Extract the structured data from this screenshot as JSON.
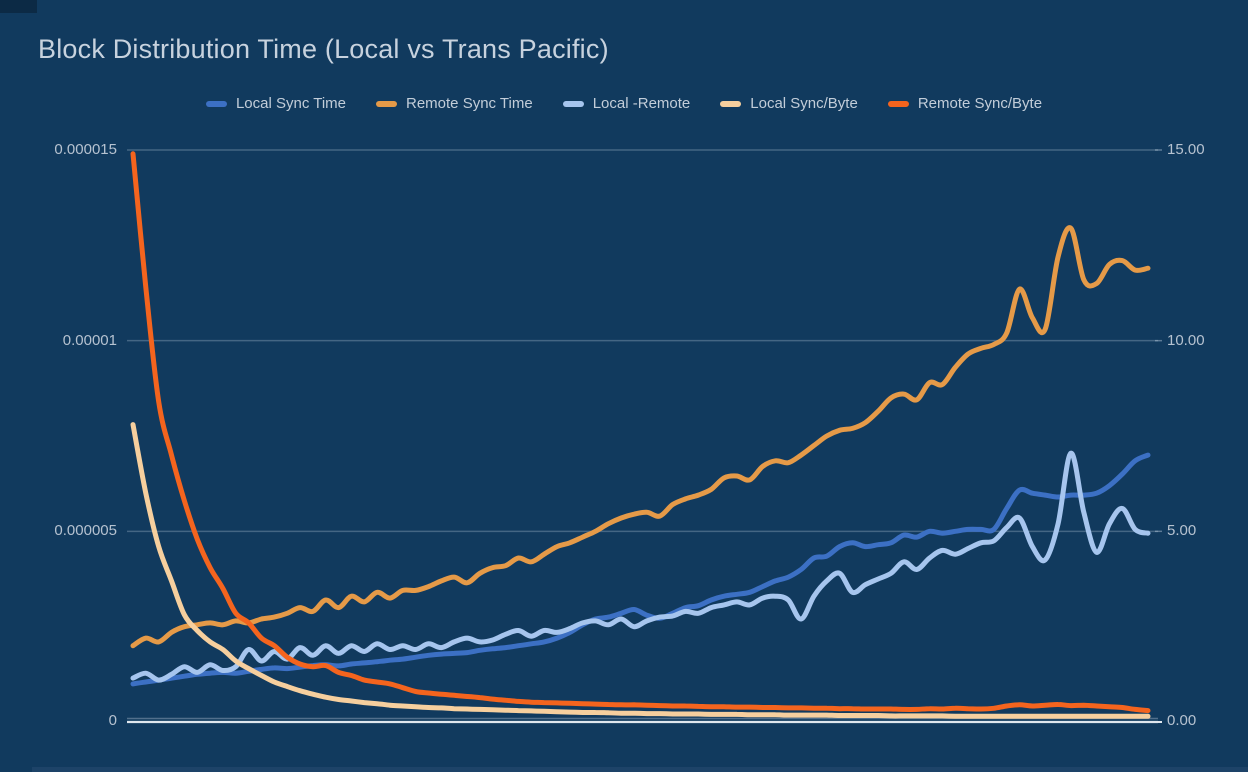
{
  "chart_data": {
    "type": "line",
    "title": "Block Distribution Time (Local vs Trans Pacific)",
    "xlabel": "",
    "ylabel": "",
    "x_note": "unlabeled x axis, 80 evenly spaced samples",
    "grid": true,
    "legend_position": "top",
    "left_axis": {
      "ticks": [
        "0.000015",
        "0.00001",
        "0.000005",
        "0"
      ],
      "range": [
        0,
        1.5e-05
      ]
    },
    "right_axis": {
      "ticks": [
        "15.00",
        "10.00",
        "5.00",
        "0.00"
      ],
      "range": [
        0,
        15
      ]
    },
    "value_scale_note": "series values below are in right-axis units (left axis = value x 1e-6)",
    "series": [
      {
        "name": "Local Sync Time",
        "color": "#3c70c4",
        "values": [
          1.0,
          1.05,
          1.1,
          1.15,
          1.2,
          1.25,
          1.28,
          1.3,
          1.28,
          1.33,
          1.38,
          1.42,
          1.4,
          1.44,
          1.48,
          1.5,
          1.47,
          1.52,
          1.55,
          1.58,
          1.62,
          1.65,
          1.7,
          1.75,
          1.78,
          1.8,
          1.82,
          1.88,
          1.92,
          1.95,
          2.0,
          2.05,
          2.1,
          2.2,
          2.35,
          2.55,
          2.7,
          2.75,
          2.85,
          2.95,
          2.8,
          2.72,
          2.85,
          3.0,
          3.05,
          3.2,
          3.3,
          3.35,
          3.4,
          3.55,
          3.7,
          3.8,
          4.0,
          4.3,
          4.35,
          4.6,
          4.7,
          4.6,
          4.65,
          4.7,
          4.9,
          4.85,
          5.0,
          4.95,
          5.0,
          5.05,
          5.05,
          5.05,
          5.6,
          6.08,
          6.0,
          5.95,
          5.9,
          5.95,
          5.95,
          6.0,
          6.2,
          6.5,
          6.85,
          7.0
        ]
      },
      {
        "name": "Remote Sync Time",
        "color": "#e59a48",
        "values": [
          2.0,
          2.2,
          2.1,
          2.35,
          2.5,
          2.55,
          2.6,
          2.55,
          2.65,
          2.6,
          2.7,
          2.75,
          2.85,
          3.0,
          2.9,
          3.2,
          3.0,
          3.3,
          3.15,
          3.4,
          3.25,
          3.45,
          3.45,
          3.55,
          3.7,
          3.8,
          3.65,
          3.9,
          4.05,
          4.1,
          4.3,
          4.2,
          4.4,
          4.6,
          4.7,
          4.85,
          5.0,
          5.2,
          5.35,
          5.45,
          5.5,
          5.4,
          5.7,
          5.85,
          5.95,
          6.1,
          6.4,
          6.45,
          6.35,
          6.7,
          6.85,
          6.8,
          7.0,
          7.25,
          7.5,
          7.65,
          7.7,
          7.85,
          8.15,
          8.5,
          8.6,
          8.45,
          8.9,
          8.85,
          9.3,
          9.65,
          9.8,
          9.9,
          10.2,
          11.35,
          10.6,
          10.3,
          12.2,
          12.95,
          11.6,
          11.5,
          12.0,
          12.1,
          11.85,
          11.9
        ]
      },
      {
        "name": "Local -Remote",
        "color": "#a6c5ee",
        "values": [
          1.15,
          1.28,
          1.1,
          1.25,
          1.45,
          1.3,
          1.5,
          1.35,
          1.45,
          1.9,
          1.6,
          1.85,
          1.65,
          1.95,
          1.75,
          2.0,
          1.8,
          2.0,
          1.85,
          2.05,
          1.9,
          2.0,
          1.9,
          2.05,
          1.95,
          2.1,
          2.2,
          2.1,
          2.15,
          2.3,
          2.4,
          2.25,
          2.4,
          2.35,
          2.45,
          2.6,
          2.65,
          2.55,
          2.7,
          2.5,
          2.65,
          2.75,
          2.78,
          2.9,
          2.85,
          3.0,
          3.07,
          3.15,
          3.07,
          3.25,
          3.3,
          3.2,
          2.7,
          3.3,
          3.7,
          3.9,
          3.4,
          3.6,
          3.75,
          3.9,
          4.2,
          4.0,
          4.3,
          4.5,
          4.4,
          4.55,
          4.7,
          4.75,
          5.1,
          5.35,
          4.6,
          4.25,
          5.2,
          7.05,
          5.5,
          4.45,
          5.2,
          5.6,
          5.05,
          4.95
        ]
      },
      {
        "name": "Local Sync/Byte",
        "color": "#f6cf9e",
        "values": [
          7.8,
          6.0,
          4.6,
          3.7,
          2.81,
          2.4,
          2.1,
          1.9,
          1.6,
          1.4,
          1.22,
          1.05,
          0.93,
          0.82,
          0.73,
          0.65,
          0.59,
          0.55,
          0.51,
          0.48,
          0.44,
          0.42,
          0.4,
          0.38,
          0.37,
          0.35,
          0.34,
          0.33,
          0.32,
          0.31,
          0.3,
          0.29,
          0.28,
          0.27,
          0.26,
          0.25,
          0.25,
          0.24,
          0.23,
          0.23,
          0.22,
          0.22,
          0.21,
          0.21,
          0.21,
          0.2,
          0.2,
          0.2,
          0.19,
          0.19,
          0.19,
          0.18,
          0.18,
          0.18,
          0.18,
          0.17,
          0.17,
          0.17,
          0.17,
          0.16,
          0.16,
          0.16,
          0.16,
          0.16,
          0.15,
          0.15,
          0.15,
          0.15,
          0.15,
          0.15,
          0.15,
          0.15,
          0.15,
          0.15,
          0.15,
          0.15,
          0.15,
          0.15,
          0.15,
          0.15
        ]
      },
      {
        "name": "Remote Sync/Byte",
        "color": "#f4641e",
        "values": [
          14.9,
          11.4,
          8.4,
          7.0,
          5.8,
          4.8,
          4.05,
          3.5,
          2.85,
          2.6,
          2.2,
          2.0,
          1.7,
          1.52,
          1.45,
          1.48,
          1.3,
          1.22,
          1.1,
          1.05,
          1.0,
          0.9,
          0.8,
          0.76,
          0.73,
          0.7,
          0.67,
          0.64,
          0.6,
          0.57,
          0.54,
          0.52,
          0.51,
          0.5,
          0.49,
          0.48,
          0.47,
          0.46,
          0.45,
          0.45,
          0.44,
          0.43,
          0.42,
          0.42,
          0.41,
          0.4,
          0.4,
          0.39,
          0.39,
          0.38,
          0.38,
          0.37,
          0.37,
          0.36,
          0.36,
          0.35,
          0.35,
          0.34,
          0.34,
          0.34,
          0.33,
          0.33,
          0.35,
          0.34,
          0.36,
          0.35,
          0.34,
          0.36,
          0.42,
          0.45,
          0.42,
          0.44,
          0.46,
          0.43,
          0.44,
          0.42,
          0.4,
          0.38,
          0.33,
          0.3
        ]
      }
    ],
    "colors": {
      "background": "#113a5e",
      "title": "#c7d2de",
      "legend_text": "#c2cdd9",
      "axis_text": "#b6c2d0",
      "gridline": "rgba(188,205,222,0.30)",
      "baseline": "#dfe6ee",
      "corner_artifact": "#0c2a45",
      "bottom_strip": "#1d4368"
    }
  }
}
